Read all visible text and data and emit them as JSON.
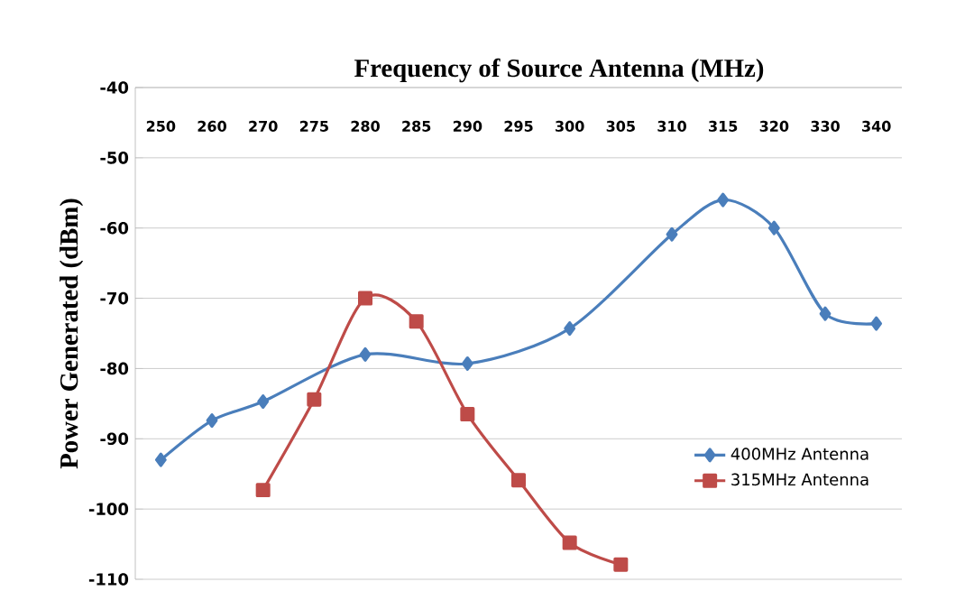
{
  "chart_data": {
    "type": "line",
    "title": "Frequency of Source Antenna (MHz)",
    "ylabel": "Power Generated (dBm)",
    "categories": [
      "250",
      "260",
      "270",
      "275",
      "280",
      "285",
      "290",
      "295",
      "300",
      "305",
      "310",
      "315",
      "320",
      "330",
      "340"
    ],
    "series": [
      {
        "name": "400MHz Antenna",
        "color": "#4a7ebb",
        "marker": "diamond",
        "values": [
          -93.0,
          -87.4,
          -84.7,
          null,
          -78.0,
          null,
          -79.3,
          null,
          -74.3,
          null,
          -60.9,
          -56.0,
          -60.0,
          -72.2,
          -73.6
        ]
      },
      {
        "name": "315MHz Antenna",
        "color": "#be4b48",
        "marker": "square",
        "values": [
          null,
          null,
          -97.3,
          -84.4,
          -70.0,
          -73.3,
          -86.5,
          -95.9,
          -104.8,
          -107.9,
          null,
          null,
          null,
          null,
          null
        ]
      }
    ],
    "ylim": [
      -110,
      -40
    ],
    "yticks": [
      -110,
      -100,
      -90,
      -80,
      -70,
      -60,
      -50,
      -40
    ],
    "grid": "y",
    "legend": "bottom right"
  }
}
